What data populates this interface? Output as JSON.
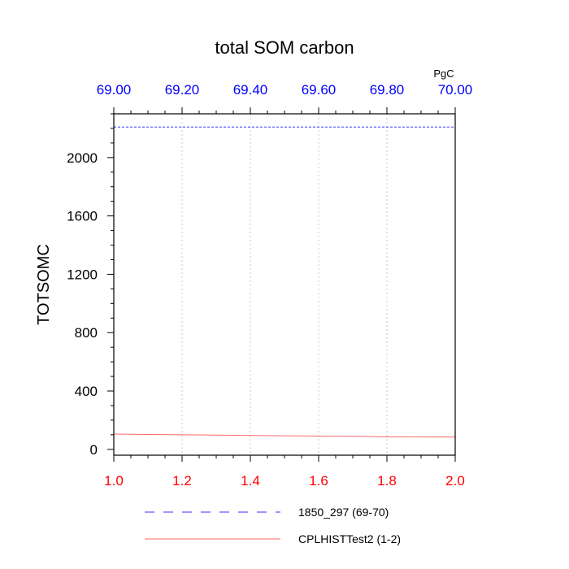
{
  "chart_data": {
    "type": "line",
    "title": "total SOM carbon",
    "ylabel": "TOTSOMC",
    "units": "PgC",
    "ylim": [
      -40,
      2300
    ],
    "y_ticks": [
      0,
      400,
      800,
      1200,
      1600,
      2000
    ],
    "y_tick_labels": [
      "0",
      "400",
      "800",
      "1200",
      "1600",
      "2000"
    ],
    "y_minor_step": 100,
    "bottom_axis": {
      "range": [
        1.0,
        2.0
      ],
      "ticks": [
        1.0,
        1.2,
        1.4,
        1.6,
        1.8,
        2.0
      ],
      "tick_labels": [
        "1.0",
        "1.2",
        "1.4",
        "1.6",
        "1.8",
        "2.0"
      ],
      "color": "#ff0000"
    },
    "top_axis": {
      "range": [
        69.0,
        70.0
      ],
      "ticks": [
        69.0,
        69.2,
        69.4,
        69.6,
        69.8,
        70.0
      ],
      "tick_labels": [
        "69.00",
        "69.20",
        "69.40",
        "69.60",
        "69.80",
        "70.00"
      ],
      "color": "#0000ff"
    },
    "grid": "vertical-dotted",
    "series": [
      {
        "name": "1850_297 (69-70)",
        "axis": "top",
        "color": "#3333ff",
        "style": "dashed",
        "x": [
          69.0,
          70.0
        ],
        "values": [
          2210,
          2210
        ]
      },
      {
        "name": "CPLHISTTest2 (1-2)",
        "axis": "bottom",
        "color": "#ff6666",
        "style": "solid",
        "x": [
          1.0,
          1.1,
          1.2,
          1.3,
          1.4,
          1.5,
          1.6,
          1.7,
          1.8,
          1.9,
          2.0
        ],
        "values": [
          105,
          102,
          100,
          98,
          95,
          93,
          91,
          89,
          87,
          86,
          85
        ]
      }
    ],
    "legend": [
      {
        "label": "1850_297 (69-70)",
        "color": "#3333ff",
        "style": "dashed"
      },
      {
        "label": "CPLHISTTest2 (1-2)",
        "color": "#ff6666",
        "style": "solid"
      }
    ]
  }
}
